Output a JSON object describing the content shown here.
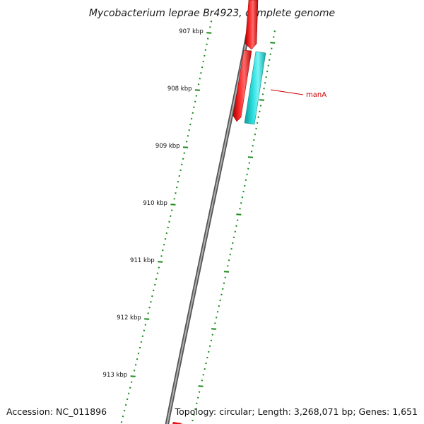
{
  "title": "Mycobacterium leprae Br4923, complete genome",
  "footer": {
    "accession": "Accession: NC_011896",
    "info": "Topology: circular; Length: 3,268,071 bp; Genes: 1,651"
  },
  "ruler": {
    "labels": [
      "907 kbp",
      "908 kbp",
      "909 kbp",
      "910 kbp",
      "911 kbp",
      "912 kbp",
      "913 kbp"
    ],
    "tick_color": "#1a8a1a"
  },
  "genes": [
    {
      "name": "",
      "strand": "forward",
      "color": "#e8141c"
    },
    {
      "name": "",
      "strand": "forward",
      "color": "#e8141c"
    },
    {
      "name": "manA",
      "strand": "reverse",
      "color": "#22cccc"
    },
    {
      "name": "",
      "strand": "forward",
      "color": "#e8141c"
    }
  ],
  "colors": {
    "backbone": "#7a7a7a",
    "forward_gene": "#e8141c",
    "reverse_gene": "#22cccc",
    "label_red": "#cc0000",
    "ruler_green": "#1a8a1a"
  }
}
